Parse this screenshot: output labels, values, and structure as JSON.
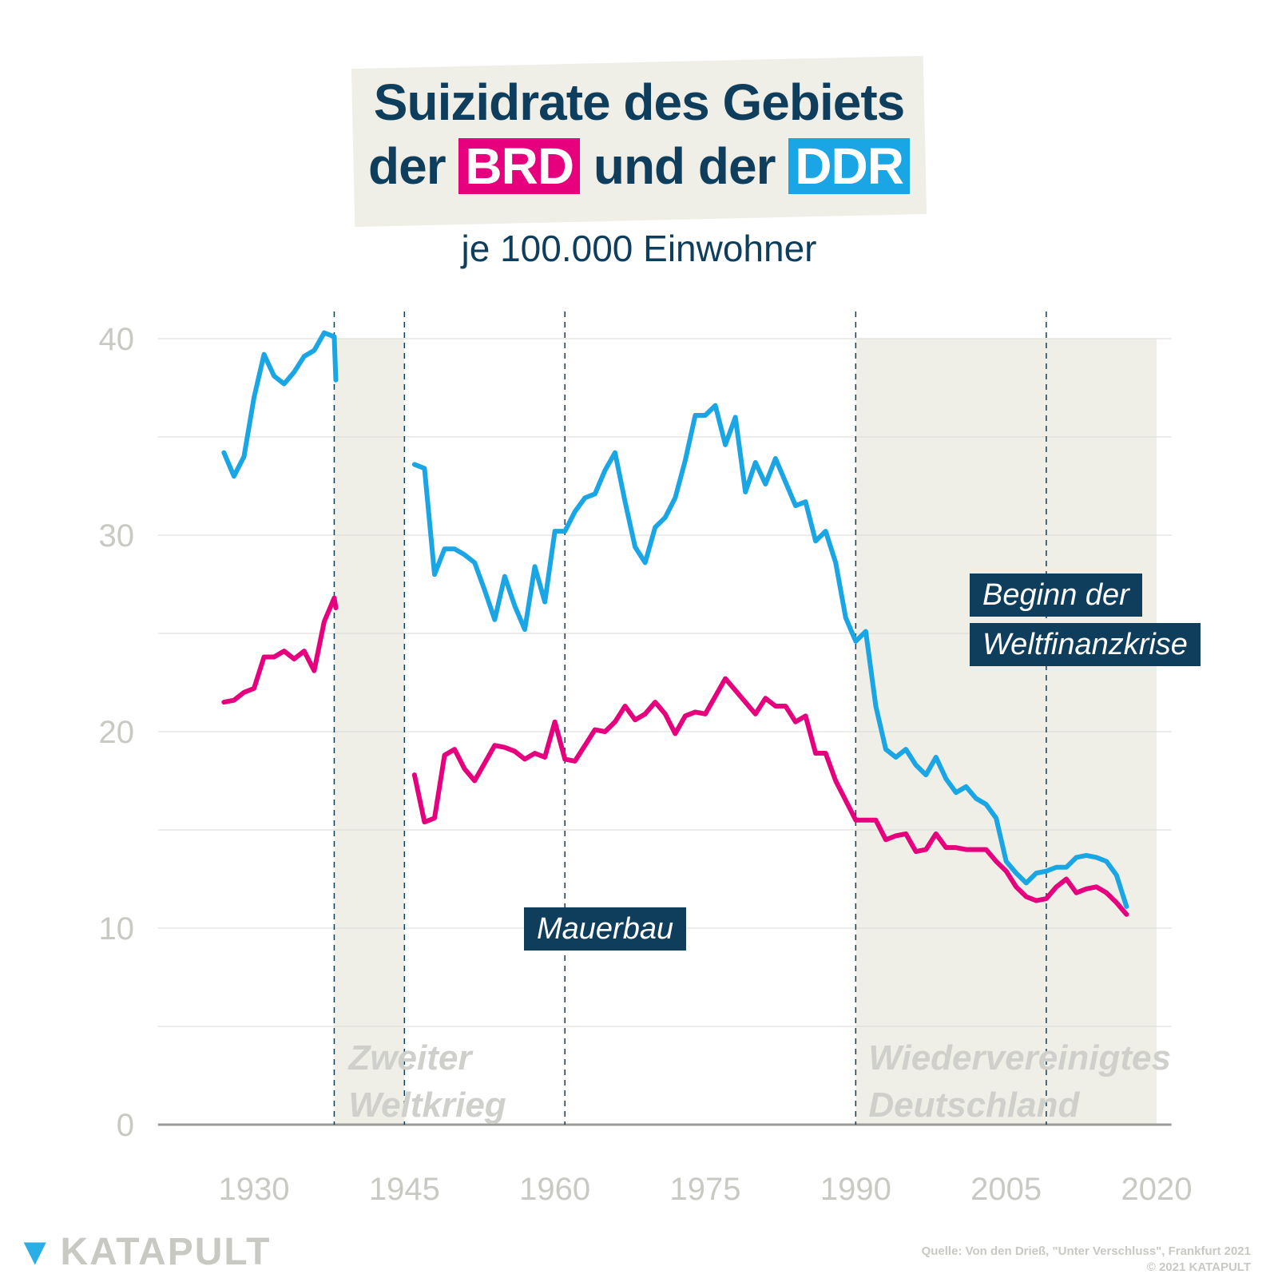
{
  "header": {
    "title_line1": "Suizidrate des Gebiets",
    "title_line2_pre": "der",
    "brd": "BRD",
    "title_line2_mid": "und der",
    "ddr": "DDR",
    "subtitle": "je 100.000 Einwohner"
  },
  "colors": {
    "brd": "#e6007e",
    "ddr": "#1aa6e4",
    "navy": "#0f3e5c",
    "shade": "#efeee7",
    "axis_text": "#c9c9c4"
  },
  "annotations": {
    "mauerbau": "Mauerbau",
    "finanzkrise_line1": "Beginn der",
    "finanzkrise_line2": "Weltfinanzkrise",
    "ww2_line1": "Zweiter",
    "ww2_line2": "Weltkrieg",
    "reunif_line1": "Wiedervereinigtes",
    "reunif_line2": "Deutschland"
  },
  "footer": {
    "logo": "KATAPULT",
    "source": "Quelle: Von den Drieß, \"Unter Verschluss\", Frankfurt 2021",
    "license": "© 2021 KATAPULT"
  },
  "chart_data": {
    "type": "line",
    "xlim": [
      1926,
      2021
    ],
    "ylim": [
      0,
      40
    ],
    "x_ticks": [
      1930,
      1945,
      1960,
      1975,
      1990,
      2005,
      2020
    ],
    "y_ticks": [
      0,
      10,
      20,
      30,
      40
    ],
    "grid": true,
    "shaded_periods": [
      [
        1938,
        1945
      ],
      [
        1990,
        2020
      ]
    ],
    "event_lines": [
      1938,
      1945,
      1961,
      1990,
      2009
    ],
    "series": [
      {
        "key": "ddr",
        "segments": [
          {
            "x": [
              1927,
              1928,
              1929,
              1930,
              1931,
              1932,
              1933,
              1934,
              1935,
              1936,
              1937,
              1938
            ],
            "y": [
              34.2,
              33.0,
              34.0,
              37.0,
              39.2,
              38.1,
              37.7,
              38.3,
              39.1,
              39.4,
              40.3,
              40.1
            ]
          },
          {
            "x": [
              1938
            ],
            "y": [
              37.9
            ]
          },
          {
            "x": [
              1946,
              1947,
              1948,
              1949,
              1950,
              1951,
              1952,
              1953,
              1954,
              1955,
              1956,
              1957,
              1958,
              1959,
              1960,
              1961,
              1962,
              1963,
              1964,
              1965,
              1966,
              1967,
              1968,
              1969,
              1970,
              1971,
              1972,
              1973,
              1974,
              1975,
              1976,
              1977,
              1978,
              1979,
              1980,
              1981,
              1982,
              1983,
              1984,
              1985,
              1986,
              1987,
              1988,
              1989,
              1990,
              1991,
              1992,
              1993,
              1994,
              1995,
              1996,
              1997,
              1998,
              1999,
              2000,
              2001,
              2002,
              2003,
              2004,
              2005,
              2006,
              2007,
              2008,
              2009,
              2010,
              2011,
              2012,
              2013,
              2014,
              2015,
              2016,
              2017
            ],
            "y": [
              33.6,
              33.4,
              28.0,
              29.3,
              29.3,
              29.0,
              28.6,
              27.2,
              25.7,
              27.9,
              26.4,
              25.2,
              28.4,
              26.6,
              30.2,
              30.2,
              31.2,
              31.9,
              32.1,
              33.3,
              34.2,
              31.7,
              29.4,
              28.6,
              30.4,
              30.9,
              31.9,
              33.8,
              36.1,
              36.1,
              36.6,
              34.6,
              36.0,
              32.2,
              33.7,
              32.6,
              33.9,
              32.7,
              31.5,
              31.7,
              29.7,
              30.2,
              28.6,
              25.8,
              24.6,
              25.1,
              21.3,
              19.1,
              18.7,
              19.1,
              18.3,
              17.8,
              18.7,
              17.6,
              16.9,
              17.2,
              16.6,
              16.3,
              15.6,
              13.4,
              12.8,
              12.3,
              12.8,
              12.9,
              13.1,
              13.1,
              13.6,
              13.7,
              13.6,
              13.4,
              12.7,
              11.1
            ]
          }
        ]
      },
      {
        "key": "brd",
        "segments": [
          {
            "x": [
              1927,
              1928,
              1929,
              1930,
              1931,
              1932,
              1933,
              1934,
              1935,
              1936,
              1937,
              1938
            ],
            "y": [
              21.5,
              21.6,
              22.0,
              22.2,
              23.8,
              23.8,
              24.1,
              23.7,
              24.1,
              23.1,
              25.6,
              26.8
            ]
          },
          {
            "x": [
              1938
            ],
            "y": [
              26.3
            ]
          },
          {
            "x": [
              1946,
              1947,
              1948,
              1949,
              1950,
              1951,
              1952,
              1953,
              1954,
              1955,
              1956,
              1957,
              1958,
              1959,
              1960,
              1961,
              1962,
              1963,
              1964,
              1965,
              1966,
              1967,
              1968,
              1969,
              1970,
              1971,
              1972,
              1973,
              1974,
              1975,
              1976,
              1977,
              1978,
              1979,
              1980,
              1981,
              1982,
              1983,
              1984,
              1985,
              1986,
              1987,
              1988,
              1989,
              1990,
              1991,
              1992,
              1993,
              1994,
              1995,
              1996,
              1997,
              1998,
              1999,
              2000,
              2001,
              2002,
              2003,
              2004,
              2005,
              2006,
              2007,
              2008,
              2009,
              2010,
              2011,
              2012,
              2013,
              2014,
              2015,
              2016,
              2017
            ],
            "y": [
              17.8,
              15.4,
              15.6,
              18.8,
              19.1,
              18.1,
              17.5,
              18.4,
              19.3,
              19.2,
              19.0,
              18.6,
              18.9,
              18.7,
              20.5,
              18.6,
              18.5,
              19.3,
              20.1,
              20.0,
              20.5,
              21.3,
              20.6,
              20.9,
              21.5,
              20.9,
              19.9,
              20.8,
              21.0,
              20.9,
              21.8,
              22.7,
              22.1,
              21.5,
              20.9,
              21.7,
              21.3,
              21.3,
              20.5,
              20.8,
              18.9,
              18.9,
              17.5,
              16.5,
              15.5,
              15.5,
              15.5,
              14.5,
              14.7,
              14.8,
              13.9,
              14.0,
              14.8,
              14.1,
              14.1,
              14.0,
              14.0,
              14.0,
              13.4,
              12.9,
              12.1,
              11.6,
              11.4,
              11.5,
              12.1,
              12.5,
              11.8,
              12.0,
              12.1,
              11.8,
              11.3,
              10.7
            ]
          }
        ]
      }
    ]
  }
}
